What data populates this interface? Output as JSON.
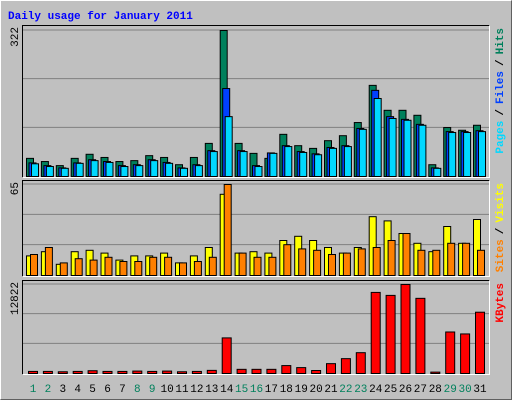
{
  "separator": "/",
  "chart_data": [
    {
      "type": "bar",
      "title": "Daily usage for January 2011",
      "ylim": [
        0,
        322
      ],
      "yticks": [
        322
      ],
      "series": [
        {
          "name": "Hits",
          "color": "#00805c",
          "values": [
            40,
            33,
            24,
            40,
            49,
            42,
            33,
            35,
            46,
            42,
            26,
            42,
            73,
            322,
            73,
            51,
            40,
            93,
            68,
            62,
            79,
            90,
            119,
            201,
            146,
            146,
            135,
            26,
            108,
            102,
            113
          ]
        },
        {
          "name": "Files",
          "color": "#0040ff",
          "values": [
            30,
            24,
            19,
            30,
            37,
            33,
            24,
            26,
            37,
            31,
            19,
            26,
            57,
            194,
            57,
            24,
            52,
            68,
            55,
            50,
            64,
            68,
            106,
            190,
            132,
            126,
            115,
            19,
            99,
            99,
            101
          ]
        },
        {
          "name": "Pages",
          "color": "#00d8ff",
          "values": [
            28,
            22,
            18,
            29,
            35,
            31,
            22,
            24,
            35,
            29,
            18,
            24,
            55,
            132,
            55,
            22,
            51,
            66,
            53,
            48,
            62,
            66,
            104,
            172,
            128,
            124,
            113,
            18,
            97,
            97,
            99
          ]
        }
      ]
    },
    {
      "type": "bar",
      "ylim": [
        0,
        65
      ],
      "yticks": [
        65
      ],
      "series": [
        {
          "name": "Visits",
          "color": "#ffff00",
          "values": [
            14,
            17,
            8,
            17,
            18,
            16,
            11,
            14,
            14,
            16,
            9,
            14,
            20,
            58,
            16,
            17,
            16,
            25,
            28,
            25,
            20,
            16,
            20,
            42,
            39,
            30,
            23,
            17,
            35,
            23,
            40
          ]
        },
        {
          "name": "Sites",
          "color": "#ff8000",
          "values": [
            15,
            20,
            9,
            12,
            11,
            13,
            10,
            10,
            13,
            13,
            9,
            10,
            13,
            65,
            16,
            13,
            13,
            22,
            19,
            18,
            15,
            16,
            19,
            20,
            25,
            30,
            18,
            18,
            23,
            23,
            18
          ]
        }
      ]
    },
    {
      "type": "bar",
      "ylim": [
        0,
        12822
      ],
      "yticks": [
        12822
      ],
      "categories": [
        "1",
        "2",
        "3",
        "4",
        "5",
        "6",
        "7",
        "8",
        "9",
        "10",
        "11",
        "12",
        "13",
        "14",
        "15",
        "16",
        "17",
        "18",
        "19",
        "20",
        "21",
        "22",
        "23",
        "24",
        "25",
        "26",
        "27",
        "28",
        "29",
        "30",
        "31"
      ],
      "label_colors": [
        "#00805c",
        "#00805c",
        "#000000",
        "#000000",
        "#000000",
        "#000000",
        "#000000",
        "#00805c",
        "#00805c",
        "#000000",
        "#000000",
        "#000000",
        "#000000",
        "#000000",
        "#00805c",
        "#00805c",
        "#000000",
        "#000000",
        "#000000",
        "#000000",
        "#000000",
        "#00805c",
        "#00805c",
        "#000000",
        "#000000",
        "#000000",
        "#000000",
        "#000000",
        "#00805c",
        "#00805c",
        "#000000"
      ],
      "series": [
        {
          "name": "KBytes",
          "color": "#ff0000",
          "values": [
            300,
            300,
            250,
            300,
            400,
            300,
            300,
            350,
            300,
            350,
            250,
            300,
            450,
            5130,
            600,
            600,
            600,
            1140,
            850,
            430,
            1420,
            2140,
            3000,
            11683,
            11254,
            12822,
            10828,
            200,
            5980,
            5700,
            8830
          ]
        }
      ]
    }
  ]
}
